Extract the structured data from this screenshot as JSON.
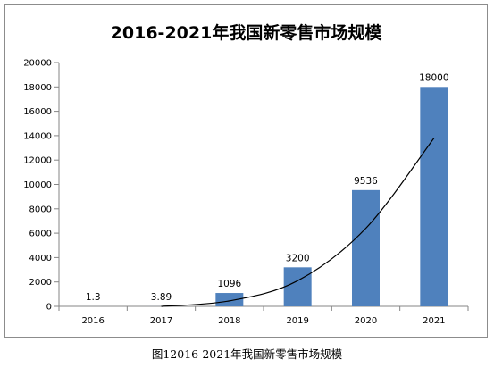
{
  "chart_data": {
    "type": "bar",
    "title": "2016-2021年我国新零售市场规模",
    "categories": [
      "2016",
      "2017",
      "2018",
      "2019",
      "2020",
      "2021"
    ],
    "series": [
      {
        "values": [
          1.3,
          3.89,
          1096,
          3200,
          9536,
          18000
        ],
        "color": "#4f81bd"
      }
    ],
    "data_labels": [
      "1.3",
      "3.89",
      "1096",
      "3200",
      "9536",
      "18000"
    ],
    "trendline": {
      "kind": "polynomial",
      "color": "#000000",
      "values": [
        null,
        0,
        450,
        2100,
        6400,
        13800
      ]
    },
    "ylim": [
      0,
      20000
    ],
    "yticks": [
      0,
      2000,
      4000,
      6000,
      8000,
      10000,
      12000,
      14000,
      16000,
      18000,
      20000
    ],
    "grid": false,
    "legend": "none",
    "xlabel": "",
    "ylabel": ""
  },
  "caption": "图12016-2021年我国新零售市场规模"
}
